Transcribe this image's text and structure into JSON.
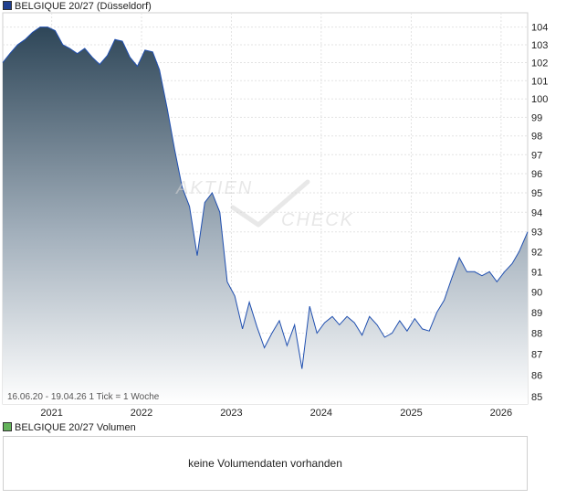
{
  "legend": {
    "price_label": "BELGIQUE 20/27 (Düsseldorf)",
    "volume_label": "BELGIQUE 20/27 Volumen",
    "price_color": "#1f3f8f",
    "volume_color": "#63b35a"
  },
  "watermark": {
    "line1": "AKTIEN",
    "line2": "CHECK"
  },
  "footer_note": "16.06.20 - 19.04.26   1 Tick = 1 Woche",
  "volume_panel": {
    "message": "keine Volumendaten vorhanden"
  },
  "chart_data": {
    "type": "area",
    "series": [
      {
        "x": [
          "2020-06-16",
          "2020-07-15",
          "2020-08-15",
          "2020-09-15",
          "2020-10-15",
          "2020-11-15",
          "2020-12-15",
          "2021-01-15",
          "2021-02-15",
          "2021-03-15",
          "2021-04-15",
          "2021-05-15",
          "2021-06-15",
          "2021-07-15",
          "2021-08-15",
          "2021-09-15",
          "2021-10-15",
          "2021-11-15",
          "2021-12-15",
          "2022-01-15",
          "2022-02-15",
          "2022-03-15",
          "2022-04-15",
          "2022-05-15",
          "2022-06-15",
          "2022-07-15",
          "2022-08-15",
          "2022-09-15",
          "2022-10-15",
          "2022-11-15",
          "2022-12-15",
          "2023-01-15",
          "2023-02-15",
          "2023-03-15",
          "2023-04-15",
          "2023-05-15",
          "2023-06-15",
          "2023-07-15",
          "2023-08-15",
          "2023-09-15",
          "2023-10-15",
          "2023-11-15",
          "2023-12-15",
          "2024-01-15",
          "2024-02-15",
          "2024-03-15",
          "2024-04-15",
          "2024-05-15",
          "2024-06-15",
          "2024-07-15",
          "2024-08-15",
          "2024-09-15",
          "2024-10-15",
          "2024-11-15",
          "2024-12-15",
          "2025-01-15",
          "2025-02-15",
          "2025-03-15",
          "2025-04-15",
          "2025-05-15",
          "2025-06-15",
          "2025-07-15",
          "2025-08-15",
          "2025-09-15",
          "2025-10-15",
          "2025-11-15",
          "2025-12-15",
          "2026-01-15",
          "2026-02-15",
          "2026-03-15",
          "2026-04-19"
        ],
        "values": [
          102.0,
          102.5,
          103.0,
          103.3,
          103.7,
          104.0,
          104.0,
          103.8,
          103.0,
          102.8,
          102.5,
          102.8,
          102.3,
          101.9,
          102.4,
          103.3,
          103.2,
          102.3,
          101.8,
          102.7,
          102.6,
          101.6,
          99.5,
          97.3,
          95.3,
          94.3,
          91.8,
          94.5,
          95.0,
          94.0,
          90.5,
          89.8,
          88.2,
          89.5,
          88.3,
          87.3,
          88.0,
          88.6,
          87.4,
          88.4,
          86.3,
          89.3,
          88.0,
          88.5,
          88.8,
          88.4,
          88.8,
          88.5,
          87.9,
          88.8,
          88.4,
          87.8,
          88.0,
          88.6,
          88.1,
          88.7,
          88.2,
          88.1,
          89.0,
          89.6,
          90.7,
          91.7,
          91.0,
          91.0,
          90.8,
          91.0,
          90.5,
          91.0,
          91.4,
          92.0,
          93.0
        ],
        "y_note_override": null
      }
    ],
    "title": "",
    "xlabel": "",
    "ylabel": "",
    "x_tick_labels": [
      "2021",
      "2022",
      "2023",
      "2024",
      "2025",
      "2026"
    ],
    "y_tick_labels": [
      "85",
      "86",
      "87",
      "88",
      "89",
      "90",
      "91",
      "92",
      "93",
      "94",
      "95",
      "96",
      "97",
      "98",
      "99",
      "100",
      "101",
      "102",
      "103",
      "104"
    ],
    "ylim": [
      85,
      104.5
    ],
    "y_scale": "log",
    "grid": true,
    "legend": "top-left"
  }
}
